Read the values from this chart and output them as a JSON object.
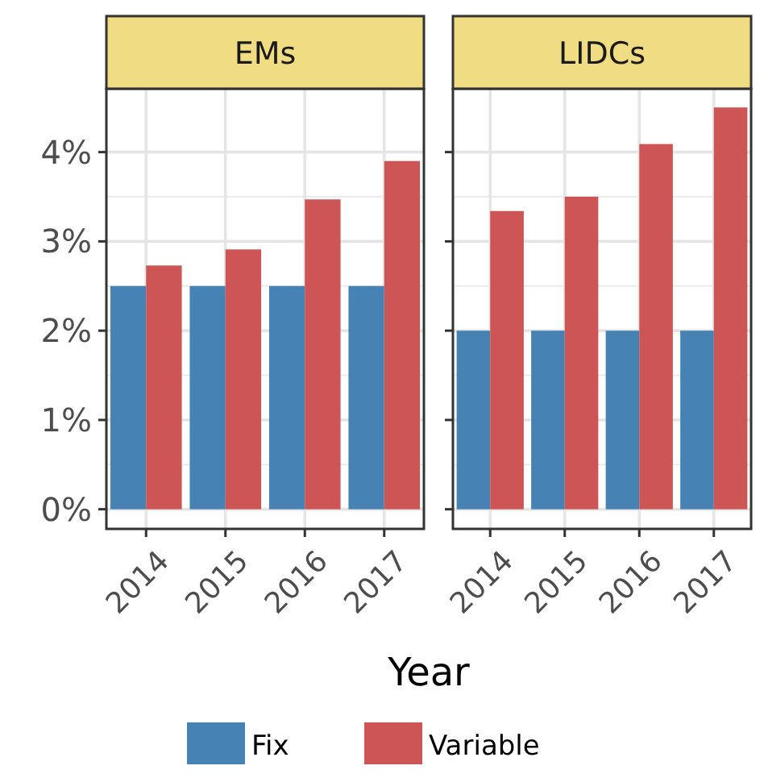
{
  "chart_data": [
    {
      "type": "bar",
      "title": "EMs",
      "xlabel": "Year",
      "categories": [
        "2014",
        "2015",
        "2016",
        "2017"
      ],
      "series": [
        {
          "name": "Fix",
          "color": "#4682b4",
          "values": [
            2.5,
            2.5,
            2.5,
            2.5
          ]
        },
        {
          "name": "Variable",
          "color": "#cd5555",
          "values": [
            2.73,
            2.91,
            3.47,
            3.9
          ]
        }
      ],
      "ylim": [
        -0.22,
        4.71
      ],
      "yticks": [
        {
          "value": 0,
          "label": "0%"
        },
        {
          "value": 1,
          "label": "1%"
        },
        {
          "value": 2,
          "label": "2%"
        },
        {
          "value": 3,
          "label": "3%"
        },
        {
          "value": 4,
          "label": "4%"
        }
      ],
      "grid": true,
      "legend": "bottom"
    },
    {
      "type": "bar",
      "title": "LIDCs",
      "categories": [
        "2014",
        "2015",
        "2016",
        "2017"
      ],
      "series": [
        {
          "color": "#4682b4",
          "values": [
            2,
            2,
            2,
            2
          ]
        },
        {
          "color": "#cd5555",
          "values": [
            3.34,
            3.5,
            4.09,
            4.5
          ]
        }
      ],
      "ylim": [
        -0.22,
        4.71
      ],
      "yticks": [
        {
          "value": 0,
          "label": null
        },
        {
          "value": 1,
          "label": null
        },
        {
          "value": 2,
          "label": null
        },
        {
          "value": 3,
          "label": null
        },
        {
          "value": 4,
          "label": null
        }
      ],
      "grid": true,
      "tick_labels": "x"
    }
  ]
}
